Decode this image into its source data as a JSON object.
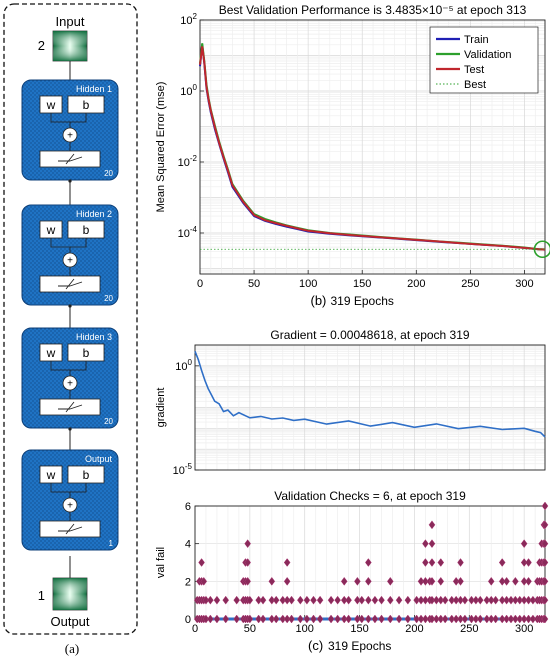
{
  "network_diagram": {
    "input_label": "Input",
    "input_count": "2",
    "output_label": "Output",
    "output_count": "1",
    "weight_label": "w",
    "bias_label": "b",
    "sum_symbol": "+",
    "layers": [
      {
        "name": "Hidden 1",
        "size": "20"
      },
      {
        "name": "Hidden 2",
        "size": "20"
      },
      {
        "name": "Hidden 3",
        "size": "20"
      },
      {
        "name": "Output",
        "size": "1"
      }
    ],
    "caption": "(a)"
  },
  "chart_data": [
    {
      "type": "line",
      "title": "Best Validation Performance is 3.4835×10⁻⁵ at epoch 313",
      "xlabel": "319 Epochs",
      "ylabel": "Mean Squared Error  (mse)",
      "caption": "(b)",
      "xlim": [
        0,
        319
      ],
      "ylim": [
        7e-06,
        100
      ],
      "yscale": "log",
      "x_ticks": [
        0,
        50,
        100,
        150,
        200,
        250,
        300
      ],
      "y_ticks": [
        {
          "value": 100,
          "base": "10",
          "exp": "2"
        },
        {
          "value": 1,
          "base": "10",
          "exp": "0"
        },
        {
          "value": 0.01,
          "base": "10",
          "exp": "-2"
        },
        {
          "value": 0.0001,
          "base": "10",
          "exp": "-4"
        }
      ],
      "grid": true,
      "legend_position": "top-right",
      "series": [
        {
          "name": "Train",
          "color": "#1f1fb4",
          "x": [
            0,
            2,
            4,
            6,
            8,
            10,
            14,
            18,
            22,
            26,
            30,
            40,
            50,
            60,
            70,
            80,
            90,
            100,
            120,
            140,
            160,
            180,
            200,
            220,
            240,
            260,
            280,
            300,
            313,
            319
          ],
          "y": [
            5,
            20,
            6,
            1.2,
            0.5,
            0.25,
            0.08,
            0.03,
            0.012,
            0.005,
            0.002,
            0.0007,
            0.0003,
            0.00022,
            0.00018,
            0.00015,
            0.00013,
            0.00011,
            9.5e-05,
            8.5e-05,
            7.7e-05,
            7e-05,
            6.3e-05,
            5.7e-05,
            5.2e-05,
            4.7e-05,
            4.3e-05,
            3.8e-05,
            3.5e-05,
            3.4e-05
          ]
        },
        {
          "name": "Validation",
          "color": "#2ca02c",
          "x": [
            0,
            2,
            4,
            6,
            8,
            10,
            14,
            18,
            22,
            26,
            30,
            40,
            50,
            60,
            70,
            80,
            90,
            100,
            120,
            140,
            160,
            180,
            200,
            220,
            240,
            260,
            280,
            300,
            313,
            319
          ],
          "y": [
            6,
            22,
            7,
            1.5,
            0.6,
            0.3,
            0.1,
            0.035,
            0.014,
            0.006,
            0.0024,
            0.0008,
            0.00034,
            0.00025,
            0.0002,
            0.000165,
            0.00014,
            0.00012,
            0.0001,
            9e-05,
            8e-05,
            7.2e-05,
            6.5e-05,
            5.8e-05,
            5.3e-05,
            4.8e-05,
            4.4e-05,
            3.9e-05,
            3.48e-05,
            3.5e-05
          ]
        },
        {
          "name": "Test",
          "color": "#c0262d",
          "x": [
            0,
            2,
            4,
            6,
            8,
            10,
            14,
            18,
            22,
            26,
            30,
            40,
            50,
            60,
            70,
            80,
            90,
            100,
            120,
            140,
            160,
            180,
            200,
            220,
            240,
            260,
            280,
            300,
            313,
            319
          ],
          "y": [
            5.5,
            18,
            6.5,
            1.3,
            0.55,
            0.28,
            0.09,
            0.032,
            0.013,
            0.0055,
            0.0022,
            0.00075,
            0.00032,
            0.00023,
            0.00019,
            0.00016,
            0.000135,
            0.000115,
            9.8e-05,
            8.7e-05,
            7.8e-05,
            7.1e-05,
            6.4e-05,
            5.8e-05,
            5.2e-05,
            4.7e-05,
            4.3e-05,
            3.8e-05,
            3.5e-05,
            3.4e-05
          ]
        }
      ],
      "best": {
        "name": "Best",
        "epoch": 313,
        "value": 3.4835e-05
      }
    },
    {
      "type": "line",
      "title": "Gradient = 0.00048618, at epoch 319",
      "ylabel": "gradient",
      "xlim": [
        0,
        319
      ],
      "ylim": [
        1e-05,
        10
      ],
      "yscale": "log",
      "y_ticks": [
        {
          "value": 1,
          "base": "10",
          "exp": "0"
        },
        {
          "value": 1e-05,
          "base": "10",
          "exp": "-5"
        }
      ],
      "grid": true,
      "series": [
        {
          "color": "#2f6fc7",
          "x": [
            0,
            3,
            6,
            9,
            12,
            15,
            18,
            22,
            26,
            30,
            35,
            40,
            50,
            60,
            70,
            80,
            90,
            100,
            120,
            140,
            160,
            180,
            200,
            220,
            240,
            260,
            280,
            300,
            310,
            315,
            319
          ],
          "y": [
            5,
            2,
            0.6,
            0.2,
            0.08,
            0.04,
            0.02,
            0.012,
            0.008,
            0.006,
            0.005,
            0.0045,
            0.004,
            0.003,
            0.0035,
            0.0025,
            0.003,
            0.0022,
            0.002,
            0.0018,
            0.0016,
            0.0015,
            0.0014,
            0.0013,
            0.0012,
            0.001,
            0.0011,
            0.0008,
            0.0009,
            0.0005,
            0.00048618
          ]
        }
      ]
    },
    {
      "type": "scatter",
      "title": "Validation Checks = 6, at epoch 319",
      "xlabel": "319 Epochs",
      "ylabel": "val fail",
      "caption": "(c)",
      "xlim": [
        0,
        319
      ],
      "ylim": [
        0,
        6
      ],
      "x_ticks": [
        0,
        50,
        100,
        150,
        200,
        250,
        300
      ],
      "y_ticks": [
        0,
        2,
        4,
        6
      ],
      "grid": true,
      "marker_color": "#8a2a5a",
      "marker_edge": "#b0407a",
      "zero_line_color": "#2f6fc7",
      "points": [
        [
          2,
          1
        ],
        [
          4,
          2
        ],
        [
          6,
          3
        ],
        [
          8,
          2
        ],
        [
          10,
          1
        ],
        [
          14,
          1
        ],
        [
          20,
          1
        ],
        [
          28,
          1
        ],
        [
          38,
          1
        ],
        [
          44,
          2
        ],
        [
          46,
          3
        ],
        [
          48,
          4
        ],
        [
          50,
          1
        ],
        [
          58,
          1
        ],
        [
          62,
          1
        ],
        [
          70,
          2
        ],
        [
          74,
          1
        ],
        [
          80,
          1
        ],
        [
          84,
          3
        ],
        [
          88,
          1
        ],
        [
          96,
          1
        ],
        [
          102,
          1
        ],
        [
          108,
          1
        ],
        [
          114,
          1
        ],
        [
          124,
          1
        ],
        [
          130,
          1
        ],
        [
          136,
          2
        ],
        [
          140,
          1
        ],
        [
          148,
          2
        ],
        [
          152,
          1
        ],
        [
          158,
          3
        ],
        [
          164,
          1
        ],
        [
          170,
          1
        ],
        [
          178,
          2
        ],
        [
          186,
          1
        ],
        [
          194,
          1
        ],
        [
          202,
          1
        ],
        [
          206,
          2
        ],
        [
          210,
          4
        ],
        [
          214,
          2
        ],
        [
          216,
          5
        ],
        [
          220,
          1
        ],
        [
          224,
          3
        ],
        [
          228,
          1
        ],
        [
          234,
          1
        ],
        [
          238,
          2
        ],
        [
          242,
          3
        ],
        [
          246,
          1
        ],
        [
          252,
          1
        ],
        [
          256,
          1
        ],
        [
          260,
          1
        ],
        [
          266,
          1
        ],
        [
          270,
          2
        ],
        [
          274,
          1
        ],
        [
          280,
          3
        ],
        [
          284,
          2
        ],
        [
          288,
          1
        ],
        [
          292,
          2
        ],
        [
          296,
          1
        ],
        [
          300,
          4
        ],
        [
          304,
          3
        ],
        [
          308,
          1
        ],
        [
          312,
          2
        ],
        [
          314,
          3
        ],
        [
          316,
          4
        ],
        [
          318,
          5
        ],
        [
          319,
          6
        ]
      ]
    }
  ]
}
